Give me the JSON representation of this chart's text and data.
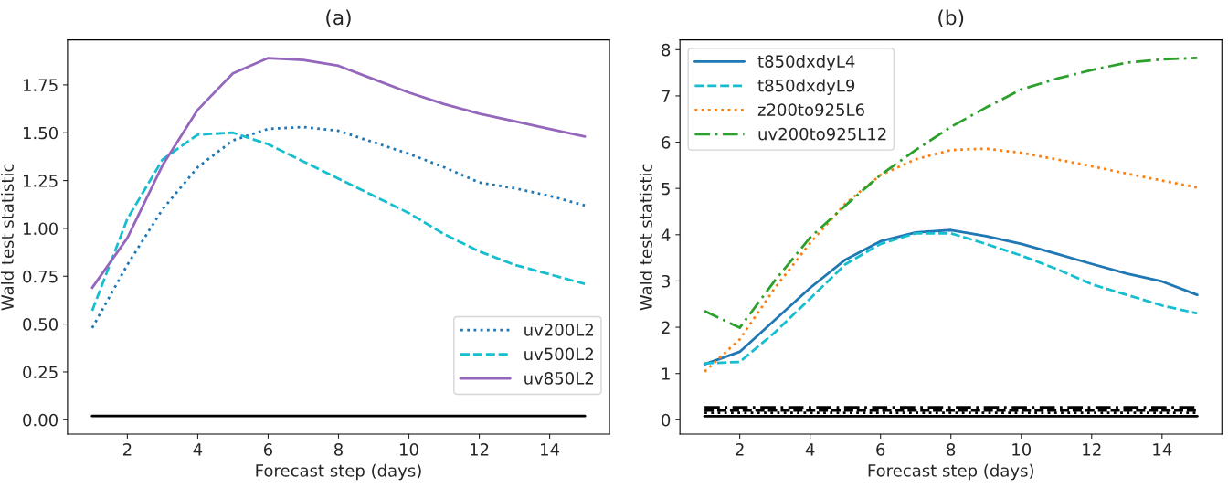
{
  "chart_data": [
    {
      "type": "line",
      "title": "(a)",
      "xlabel": "Forecast step (days)",
      "ylabel": "Wald test statistic",
      "x": [
        1,
        2,
        3,
        4,
        5,
        6,
        7,
        8,
        9,
        10,
        11,
        12,
        13,
        14,
        15
      ],
      "series": [
        {
          "name": "uv200L2",
          "color": "#1f77b4",
          "line_style": "dotted",
          "values": [
            0.48,
            0.81,
            1.1,
            1.32,
            1.46,
            1.52,
            1.53,
            1.51,
            1.45,
            1.39,
            1.32,
            1.24,
            1.21,
            1.17,
            1.12
          ]
        },
        {
          "name": "uv500L2",
          "color": "#17becf",
          "line_style": "dashed",
          "values": [
            0.57,
            1.05,
            1.36,
            1.49,
            1.5,
            1.44,
            1.35,
            1.26,
            1.17,
            1.08,
            0.97,
            0.88,
            0.81,
            0.76,
            0.71
          ]
        },
        {
          "name": "uv850L2",
          "color": "#9467bd",
          "line_style": "solid",
          "values": [
            0.69,
            0.95,
            1.33,
            1.62,
            1.81,
            1.89,
            1.88,
            1.85,
            1.78,
            1.71,
            1.65,
            1.6,
            1.56,
            1.52,
            1.48
          ]
        },
        {
          "color": "#000000",
          "line_style": "solid",
          "values": [
            0.02,
            0.02,
            0.02,
            0.02,
            0.02,
            0.02,
            0.02,
            0.02,
            0.02,
            0.02,
            0.02,
            0.02,
            0.02,
            0.02,
            0.02
          ]
        }
      ],
      "xlim": [
        0.3,
        15.7
      ],
      "xticks": [
        2,
        4,
        6,
        8,
        10,
        12,
        14
      ],
      "ylim": [
        -0.075,
        1.985
      ],
      "yticks": [
        {
          "value": 0,
          "label": "0.00"
        },
        {
          "value": 0.25,
          "label": "0.25"
        },
        {
          "value": 0.5,
          "label": "0.50"
        },
        {
          "value": 0.75,
          "label": "0.75"
        },
        {
          "value": 1,
          "label": "1.00"
        },
        {
          "value": 1.25,
          "label": "1.25"
        },
        {
          "value": 1.5,
          "label": "1.50"
        },
        {
          "value": 1.75,
          "label": "1.75"
        }
      ],
      "legend": "lower right",
      "grid": false
    },
    {
      "type": "line",
      "title": "(b)",
      "xlabel": "Forecast step (days)",
      "ylabel": "Wald test statistic",
      "x": [
        1,
        2,
        3,
        4,
        5,
        6,
        7,
        8,
        9,
        10,
        11,
        12,
        13,
        14,
        15
      ],
      "series": [
        {
          "name": "t850dxdyL4",
          "color": "#1f77b4",
          "line_style": "solid",
          "values": [
            1.2,
            1.47,
            2.16,
            2.85,
            3.46,
            3.86,
            4.05,
            4.1,
            3.97,
            3.8,
            3.59,
            3.37,
            3.16,
            2.99,
            2.7
          ]
        },
        {
          "name": "t850dxdyL9",
          "color": "#17becf",
          "line_style": "dashed",
          "values": [
            1.22,
            1.25,
            1.89,
            2.62,
            3.36,
            3.8,
            4.03,
            4.03,
            3.8,
            3.55,
            3.26,
            2.93,
            2.7,
            2.47,
            2.3
          ]
        },
        {
          "name": "z200to925L6",
          "color": "#ff7f0e",
          "line_style": "dotted",
          "values": [
            1.04,
            1.74,
            2.85,
            3.82,
            4.67,
            5.29,
            5.63,
            5.83,
            5.86,
            5.77,
            5.63,
            5.48,
            5.32,
            5.17,
            5.02
          ]
        },
        {
          "name": "uv200to925L12",
          "color": "#2ca02c",
          "line_style": "dashdot",
          "values": [
            2.35,
            1.99,
            3.01,
            3.94,
            4.63,
            5.29,
            5.83,
            6.33,
            6.75,
            7.14,
            7.37,
            7.56,
            7.72,
            7.79,
            7.82
          ]
        },
        {
          "color": "#000000",
          "line_style": "solid",
          "values": [
            0.08,
            0.08,
            0.08,
            0.08,
            0.08,
            0.08,
            0.08,
            0.08,
            0.08,
            0.08,
            0.08,
            0.08,
            0.08,
            0.08,
            0.08
          ]
        },
        {
          "color": "#000000",
          "line_style": "dotted",
          "values": [
            0.15,
            0.15,
            0.15,
            0.15,
            0.15,
            0.15,
            0.15,
            0.15,
            0.15,
            0.15,
            0.15,
            0.15,
            0.15,
            0.15,
            0.15
          ]
        },
        {
          "color": "#000000",
          "line_style": "dashed",
          "values": [
            0.2,
            0.2,
            0.2,
            0.2,
            0.2,
            0.2,
            0.2,
            0.2,
            0.2,
            0.2,
            0.2,
            0.2,
            0.2,
            0.2,
            0.2
          ]
        },
        {
          "color": "#000000",
          "line_style": "dashdot",
          "values": [
            0.27,
            0.27,
            0.27,
            0.27,
            0.27,
            0.27,
            0.27,
            0.27,
            0.27,
            0.27,
            0.27,
            0.27,
            0.27,
            0.27,
            0.27
          ]
        }
      ],
      "xlim": [
        0.3,
        15.7
      ],
      "xticks": [
        2,
        4,
        6,
        8,
        10,
        12,
        14
      ],
      "ylim": [
        -0.31,
        8.21
      ],
      "yticks": [
        0,
        1,
        2,
        3,
        4,
        5,
        6,
        7,
        8
      ],
      "legend": "top left",
      "grid": false
    }
  ]
}
